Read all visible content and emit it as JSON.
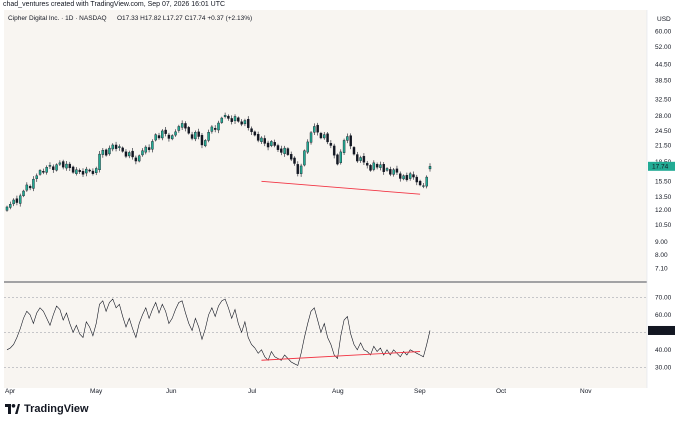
{
  "header": {
    "caption": "chad_ventures created with TradingView.com, Sep 07, 2026 16:01 UTC",
    "symbol_line": "Cipher Digital Inc. · 1D · NASDAQ",
    "ohlc": "O17.33 H17.82 L17.27 C17.74 +0.37 (+2.13%)",
    "currency": "USD"
  },
  "price_axis": {
    "ticks": [
      "60.00",
      "52.00",
      "44.50",
      "38.50",
      "32.50",
      "28.00",
      "24.50",
      "21.50",
      "18.50",
      "15.50",
      "13.50",
      "12.00",
      "10.50",
      "9.00",
      "8.00",
      "7.10"
    ],
    "last_price_label": "17.74",
    "scale": "log"
  },
  "rsi_axis": {
    "ticks": [
      "70.00",
      "60.00",
      "40.00",
      "30.00"
    ],
    "last_value_label": "51.01"
  },
  "time_axis": {
    "ticks": [
      "Apr",
      "May",
      "Jun",
      "Jul",
      "Aug",
      "Sep",
      "Oct",
      "Nov"
    ]
  },
  "brand": {
    "name": "TradingView"
  },
  "colors": {
    "up": "#26a69a",
    "up_fill": "#22ab94",
    "down": "#131722",
    "divergence": "#f23645",
    "rsi_line": "#131722",
    "last_price_bg": "#22ab94",
    "last_rsi_bg": "#131722"
  },
  "chart_data": [
    {
      "type": "candlestick",
      "series_label": "Cipher Digital Inc. · 1D · NASDAQ",
      "y_scale": "log",
      "ylim": [
        7.1,
        60
      ],
      "x_range": [
        "Apr",
        "Nov"
      ],
      "closes": [
        12.3,
        12.6,
        13.1,
        12.8,
        13.6,
        14.2,
        15.0,
        14.6,
        15.8,
        16.3,
        17.1,
        16.8,
        17.6,
        17.9,
        17.2,
        18.0,
        18.3,
        17.6,
        18.1,
        17.5,
        16.8,
        17.2,
        16.9,
        16.5,
        17.3,
        17.0,
        16.6,
        17.4,
        19.8,
        20.5,
        19.6,
        20.9,
        21.5,
        20.8,
        21.2,
        20.3,
        19.4,
        20.1,
        19.3,
        18.6,
        19.5,
        20.4,
        21.1,
        20.6,
        22.2,
        23.6,
        22.9,
        24.4,
        23.8,
        22.8,
        23.4,
        24.2,
        25.4,
        26.1,
        25.0,
        23.9,
        22.8,
        24.1,
        23.2,
        21.5,
        22.4,
        24.1,
        25.3,
        24.7,
        26.2,
        27.4,
        28.1,
        27.3,
        26.5,
        27.8,
        26.6,
        25.9,
        26.8,
        25.1,
        24.2,
        23.5,
        22.4,
        22.9,
        21.8,
        21.1,
        22.2,
        21.4,
        20.6,
        20.1,
        20.9,
        19.7,
        18.9,
        18.2,
        16.6,
        17.8,
        20.4,
        22.1,
        24.0,
        25.4,
        24.1,
        22.9,
        23.6,
        22.1,
        21.4,
        19.6,
        18.1,
        20.2,
        22.4,
        23.2,
        21.3,
        19.8,
        18.6,
        19.2,
        18.4,
        17.9,
        17.1,
        18.3,
        17.6,
        18.0,
        16.9,
        17.4,
        16.5,
        17.2,
        16.8,
        15.9,
        16.3,
        15.7,
        16.6,
        16.1,
        15.4,
        15.0,
        14.9,
        16.1,
        17.74
      ],
      "open_last": 17.33,
      "high_last": 17.82,
      "low_last": 17.27,
      "close_last": 17.74,
      "change": 0.37,
      "change_pct": 2.13
    },
    {
      "type": "line",
      "series_label": "RSI",
      "ylim": [
        25,
        73
      ],
      "reference_lines": [
        70,
        50,
        30
      ],
      "values": [
        40,
        41,
        43,
        47,
        52,
        58,
        62,
        60,
        55,
        61,
        64,
        62,
        58,
        54,
        60,
        65,
        63,
        57,
        61,
        55,
        50,
        54,
        49,
        47,
        56,
        53,
        48,
        55,
        66,
        68,
        62,
        67,
        69,
        64,
        66,
        59,
        53,
        58,
        52,
        47,
        55,
        60,
        64,
        58,
        63,
        67,
        61,
        66,
        62,
        55,
        58,
        63,
        67,
        68,
        61,
        55,
        51,
        58,
        53,
        46,
        52,
        60,
        64,
        59,
        65,
        68,
        69,
        64,
        58,
        63,
        55,
        50,
        56,
        47,
        43,
        41,
        38,
        40,
        36,
        34,
        39,
        36,
        35,
        34,
        37,
        35,
        33,
        32,
        31,
        38,
        47,
        55,
        62,
        64,
        57,
        50,
        55,
        47,
        43,
        37,
        35,
        48,
        57,
        59,
        49,
        43,
        40,
        44,
        40,
        39,
        37,
        42,
        39,
        41,
        37,
        40,
        37,
        40,
        38,
        36,
        39,
        37,
        40,
        39,
        38,
        37,
        36,
        43,
        51.01
      ],
      "divergence_lines": [
        {
          "price_from": 15.5,
          "price_to": 13.8,
          "rsi_from": 34,
          "rsi_to": 39
        }
      ]
    }
  ]
}
